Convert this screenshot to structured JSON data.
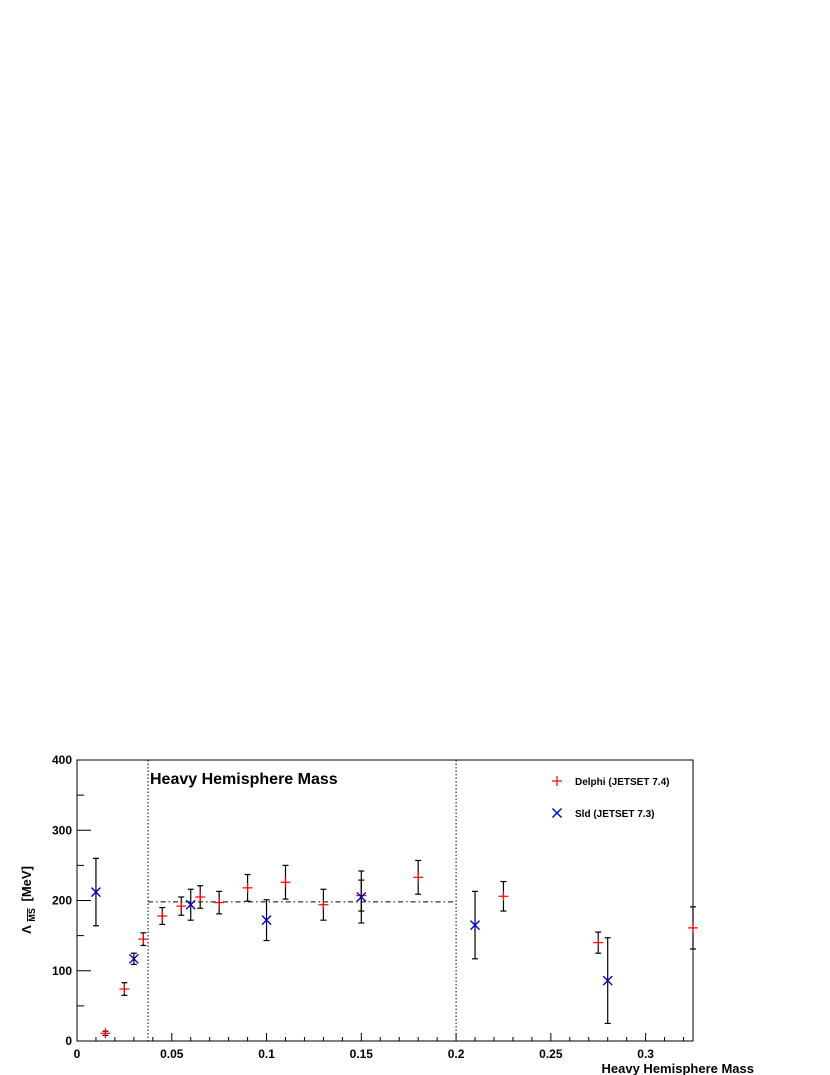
{
  "chart_data": {
    "type": "scatter",
    "title": "Heavy Hemisphere Mass",
    "xlabel": "Heavy Hemisphere Mass",
    "ylabel": "Λ",
    "ylabel_subscript": "MS",
    "ylabel_unit": "[MeV]",
    "xlim": [
      0,
      0.325
    ],
    "ylim": [
      0,
      400
    ],
    "x_ticks": [
      "0",
      "0.05",
      "0.1",
      "0.15",
      "0.2",
      "0.25",
      "0.3"
    ],
    "x_tick_values": [
      0,
      0.05,
      0.1,
      0.15,
      0.2,
      0.25,
      0.3
    ],
    "y_ticks": [
      "0",
      "100",
      "200",
      "300",
      "400"
    ],
    "y_tick_values": [
      0,
      100,
      200,
      300,
      400
    ],
    "legend_position": "top-right",
    "grid": false,
    "series": [
      {
        "name": "Delphi (JETSET 7.4)",
        "marker": "plus",
        "color": "#ff0000",
        "points": [
          {
            "x": 0.015,
            "y": 11,
            "err": 3
          },
          {
            "x": 0.025,
            "y": 74,
            "err": 9
          },
          {
            "x": 0.035,
            "y": 145,
            "err": 9
          },
          {
            "x": 0.045,
            "y": 178,
            "err": 12
          },
          {
            "x": 0.055,
            "y": 192,
            "err": 13
          },
          {
            "x": 0.065,
            "y": 205,
            "err": 16
          },
          {
            "x": 0.075,
            "y": 197,
            "err": 16
          },
          {
            "x": 0.09,
            "y": 218,
            "err": 19
          },
          {
            "x": 0.11,
            "y": 226,
            "err": 24
          },
          {
            "x": 0.13,
            "y": 194,
            "err": 22
          },
          {
            "x": 0.15,
            "y": 207,
            "err": 22
          },
          {
            "x": 0.18,
            "y": 233,
            "err": 24
          },
          {
            "x": 0.225,
            "y": 206,
            "err": 21
          },
          {
            "x": 0.275,
            "y": 140,
            "err": 15
          },
          {
            "x": 0.325,
            "y": 161,
            "err": 30
          }
        ]
      },
      {
        "name": "Sld (JETSET 7.3)",
        "marker": "cross",
        "color": "#0000cc",
        "points": [
          {
            "x": 0.01,
            "y": 212,
            "err": 48
          },
          {
            "x": 0.03,
            "y": 117,
            "err": 8
          },
          {
            "x": 0.06,
            "y": 194,
            "err": 22
          },
          {
            "x": 0.1,
            "y": 172,
            "err": 29
          },
          {
            "x": 0.15,
            "y": 205,
            "err": 37
          },
          {
            "x": 0.21,
            "y": 165,
            "err": 48
          },
          {
            "x": 0.28,
            "y": 86,
            "err": 61
          }
        ]
      }
    ],
    "vertical_lines": [
      0.0375,
      0.2
    ],
    "fit_line": {
      "y": 198,
      "x_from": 0.0375,
      "x_to": 0.2
    }
  }
}
